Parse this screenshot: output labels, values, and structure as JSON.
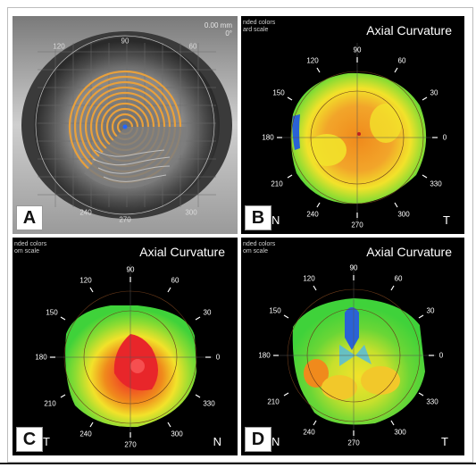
{
  "panels": {
    "a": {
      "letter": "A",
      "scale_top": "0.00 mm",
      "scale_angle": "0°",
      "ring_labels": [
        "120",
        "90",
        "60",
        "270",
        "240",
        "300"
      ]
    },
    "b": {
      "letter": "B",
      "title": "Axial Curvature",
      "legend_line1": "nded colors",
      "legend_line2": "ard scale",
      "left_side": "N",
      "right_side": "T"
    },
    "c": {
      "letter": "C",
      "title": "Axial Curvature",
      "legend_line1": "nded colors",
      "legend_line2": "om scale",
      "left_side": "T",
      "right_side": "N"
    },
    "d": {
      "letter": "D",
      "title": "Axial Curvature",
      "legend_line1": "nded colors",
      "legend_line2": "om scale",
      "left_side": "N",
      "right_side": "T"
    }
  },
  "angle_labels": [
    "90",
    "60",
    "30",
    "0",
    "330",
    "300",
    "270",
    "240",
    "210",
    "180",
    "150",
    "120"
  ],
  "colors": {
    "background": "#000000",
    "map_green": "#3fd23a",
    "map_yellow": "#f2e22a",
    "map_orange": "#f08a1c",
    "map_red": "#e8262a",
    "map_blue": "#2a62d6",
    "placido_ring": "#e8a03c"
  }
}
